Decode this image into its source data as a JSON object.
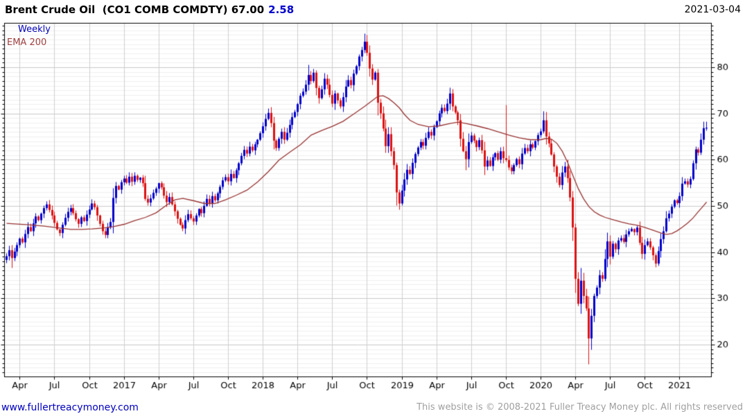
{
  "header": {
    "title": "Brent Crude Oil  (CO1 COMB COMDTY) 67.00",
    "change": "2.58",
    "date": "2021-03-04"
  },
  "legend": {
    "series": "Weekly",
    "overlay": "EMA 200"
  },
  "footer": {
    "link": "www.fullertreacymoney.com",
    "copyright": "This website is © 2008-2021 Fuller Treacy Money plc. All rights reserved"
  },
  "colors": {
    "up_candle": "#0000cc",
    "down_candle": "#dd1111",
    "ema_line": "#993333",
    "grid_major": "#c9c9c9",
    "grid_minor": "#efefef",
    "grid_vertical": "#cfcfcf",
    "axis": "#000000",
    "label": "#000000",
    "accent_blue": "#0000cc",
    "muted_gray": "#9f9f9f"
  },
  "chart_data": {
    "type": "candlestick",
    "title": "Brent Crude Oil (CO1 COMB COMDTY)",
    "interval": "Weekly",
    "overlay": "EMA 200",
    "last_close": 67.0,
    "change": 2.58,
    "date": "2021-03-04",
    "ylim": [
      13.1,
      89.6
    ],
    "y_ticks": [
      20,
      30,
      40,
      50,
      60,
      70,
      80
    ],
    "y_minor_step": 1,
    "legend_position": "top-left",
    "axis_labels_side": "right",
    "x_ticks": [
      {
        "label": "Apr",
        "week": 5
      },
      {
        "label": "Jul",
        "week": 18
      },
      {
        "label": "Oct",
        "week": 31
      },
      {
        "label": "2017",
        "week": 44
      },
      {
        "label": "Apr",
        "week": 57
      },
      {
        "label": "Jul",
        "week": 70
      },
      {
        "label": "Oct",
        "week": 83
      },
      {
        "label": "2018",
        "week": 96
      },
      {
        "label": "Apr",
        "week": 109
      },
      {
        "label": "Jul",
        "week": 122
      },
      {
        "label": "Oct",
        "week": 135
      },
      {
        "label": "2019",
        "week": 148
      },
      {
        "label": "Apr",
        "week": 161
      },
      {
        "label": "Jul",
        "week": 174
      },
      {
        "label": "Oct",
        "week": 187
      },
      {
        "label": "2020",
        "week": 200
      },
      {
        "label": "Apr",
        "week": 213
      },
      {
        "label": "Jul",
        "week": 226
      },
      {
        "label": "Oct",
        "week": 239
      },
      {
        "label": "2021",
        "week": 252
      }
    ],
    "closes": [
      39.2,
      40.5,
      38.8,
      40.2,
      41.6,
      43.0,
      42.2,
      44.0,
      45.5,
      44.6,
      46.3,
      47.8,
      47.0,
      48.4,
      49.6,
      50.4,
      49.2,
      48.0,
      46.4,
      45.0,
      44.2,
      46.0,
      47.5,
      48.8,
      49.6,
      48.5,
      47.2,
      46.2,
      47.6,
      46.8,
      48.2,
      49.3,
      50.6,
      49.8,
      48.0,
      46.2,
      44.6,
      43.8,
      45.4,
      46.6,
      51.8,
      54.4,
      53.6,
      55.2,
      56.0,
      55.1,
      56.4,
      55.3,
      56.6,
      55.7,
      56.2,
      55.0,
      51.6,
      50.8,
      51.7,
      52.9,
      53.8,
      55.0,
      54.1,
      52.3,
      50.9,
      52.0,
      50.4,
      48.9,
      47.3,
      46.0,
      45.2,
      47.0,
      48.3,
      47.4,
      46.7,
      48.0,
      49.4,
      48.5,
      50.1,
      51.6,
      50.7,
      52.2,
      51.3,
      52.8,
      54.2,
      55.6,
      56.3,
      55.4,
      57.0,
      56.1,
      57.8,
      59.3,
      60.9,
      62.2,
      61.4,
      62.9,
      62.1,
      63.4,
      64.4,
      65.8,
      67.3,
      68.9,
      70.2,
      68.0,
      64.2,
      62.6,
      64.6,
      66.1,
      64.4,
      65.9,
      67.6,
      69.3,
      70.4,
      72.1,
      73.9,
      74.8,
      76.3,
      78.4,
      77.1,
      78.9,
      75.6,
      73.4,
      75.3,
      77.6,
      76.3,
      74.1,
      72.2,
      74.4,
      72.9,
      71.6,
      73.6,
      75.9,
      77.3,
      76.2,
      78.7,
      80.3,
      82.4,
      83.8,
      85.6,
      83.2,
      79.8,
      77.4,
      78.9,
      72.4,
      70.1,
      66.8,
      63.0,
      65.6,
      61.9,
      58.9,
      53.0,
      50.6,
      53.4,
      55.8,
      57.9,
      57.0,
      59.4,
      61.3,
      62.7,
      63.9,
      63.1,
      64.8,
      66.1,
      65.3,
      67.1,
      68.4,
      70.1,
      71.3,
      70.6,
      72.2,
      74.4,
      71.6,
      70.3,
      68.6,
      64.6,
      61.9,
      60.2,
      63.9,
      65.3,
      64.2,
      62.8,
      64.3,
      62.1,
      58.6,
      59.9,
      58.7,
      60.6,
      61.5,
      60.1,
      61.9,
      60.4,
      60.0,
      58.4,
      57.6,
      58.9,
      60.2,
      59.1,
      61.4,
      62.6,
      61.9,
      63.4,
      62.7,
      64.1,
      65.4,
      66.2,
      68.6,
      65.1,
      63.6,
      61.2,
      58.6,
      56.4,
      54.6,
      57.3,
      58.6,
      56.1,
      51.9,
      45.4,
      34.3,
      28.9,
      33.9,
      30.6,
      27.9,
      21.4,
      26.3,
      30.6,
      32.4,
      35.1,
      34.3,
      38.6,
      42.4,
      39.1,
      41.9,
      40.7,
      42.6,
      43.1,
      42.3,
      43.9,
      44.6,
      45.1,
      44.4,
      45.4,
      42.1,
      39.7,
      41.6,
      42.4,
      41.1,
      39.4,
      37.6,
      40.3,
      42.9,
      44.6,
      47.4,
      48.4,
      49.9,
      51.3,
      50.7,
      52.2,
      54.9,
      55.4,
      54.7,
      55.9,
      59.3,
      62.3,
      61.6,
      64.4,
      66.9,
      67.0
    ],
    "wick_overrides": {
      "2": {
        "l": 36.6
      },
      "113": {
        "h": 80.6
      },
      "134": {
        "h": 87.3
      },
      "147": {
        "l": 49.2
      },
      "166": {
        "h": 75.6
      },
      "172": {
        "l": 57.8
      },
      "187": {
        "h": 71.9
      },
      "201": {
        "h": 70.6
      },
      "213": {
        "l": 31.2
      },
      "215": {
        "h": 36.6
      },
      "218": {
        "l": 15.8
      },
      "262": {
        "h": 68.3
      }
    },
    "ema_200": [
      [
        0,
        46.3
      ],
      [
        8,
        46.0
      ],
      [
        14,
        45.7
      ],
      [
        20,
        45.3
      ],
      [
        24,
        45.0
      ],
      [
        28,
        45.0
      ],
      [
        32,
        45.1
      ],
      [
        36,
        45.3
      ],
      [
        40,
        45.6
      ],
      [
        44,
        46.1
      ],
      [
        48,
        46.9
      ],
      [
        52,
        47.6
      ],
      [
        56,
        48.6
      ],
      [
        60,
        50.3
      ],
      [
        63,
        51.4
      ],
      [
        66,
        51.7
      ],
      [
        70,
        51.2
      ],
      [
        74,
        50.6
      ],
      [
        78,
        50.6
      ],
      [
        82,
        51.4
      ],
      [
        86,
        52.4
      ],
      [
        90,
        53.5
      ],
      [
        94,
        55.3
      ],
      [
        98,
        57.5
      ],
      [
        102,
        60.0
      ],
      [
        106,
        61.7
      ],
      [
        110,
        63.3
      ],
      [
        114,
        65.4
      ],
      [
        118,
        66.4
      ],
      [
        122,
        67.3
      ],
      [
        126,
        68.4
      ],
      [
        130,
        70.0
      ],
      [
        134,
        71.6
      ],
      [
        137,
        72.9
      ],
      [
        139,
        73.8
      ],
      [
        141,
        73.9
      ],
      [
        143,
        73.3
      ],
      [
        145,
        72.4
      ],
      [
        147,
        71.3
      ],
      [
        149,
        69.8
      ],
      [
        151,
        68.6
      ],
      [
        154,
        67.7
      ],
      [
        158,
        67.2
      ],
      [
        162,
        67.4
      ],
      [
        166,
        67.9
      ],
      [
        169,
        68.2
      ],
      [
        172,
        67.9
      ],
      [
        176,
        67.4
      ],
      [
        180,
        66.8
      ],
      [
        184,
        66.1
      ],
      [
        188,
        65.4
      ],
      [
        192,
        64.8
      ],
      [
        196,
        64.4
      ],
      [
        200,
        64.4
      ],
      [
        202,
        64.7
      ],
      [
        204,
        64.5
      ],
      [
        206,
        63.6
      ],
      [
        208,
        61.9
      ],
      [
        210,
        59.5
      ],
      [
        212,
        56.6
      ],
      [
        214,
        53.8
      ],
      [
        216,
        51.6
      ],
      [
        218,
        49.9
      ],
      [
        220,
        48.8
      ],
      [
        222,
        48.1
      ],
      [
        224,
        47.6
      ],
      [
        227,
        47.1
      ],
      [
        230,
        46.6
      ],
      [
        233,
        46.2
      ],
      [
        236,
        45.9
      ],
      [
        239,
        45.4
      ],
      [
        242,
        44.8
      ],
      [
        245,
        44.2
      ],
      [
        247,
        43.9
      ],
      [
        249,
        44.1
      ],
      [
        251,
        44.7
      ],
      [
        253,
        45.5
      ],
      [
        255,
        46.4
      ],
      [
        257,
        47.5
      ],
      [
        259,
        48.9
      ],
      [
        261,
        50.2
      ],
      [
        262,
        50.9
      ]
    ]
  }
}
